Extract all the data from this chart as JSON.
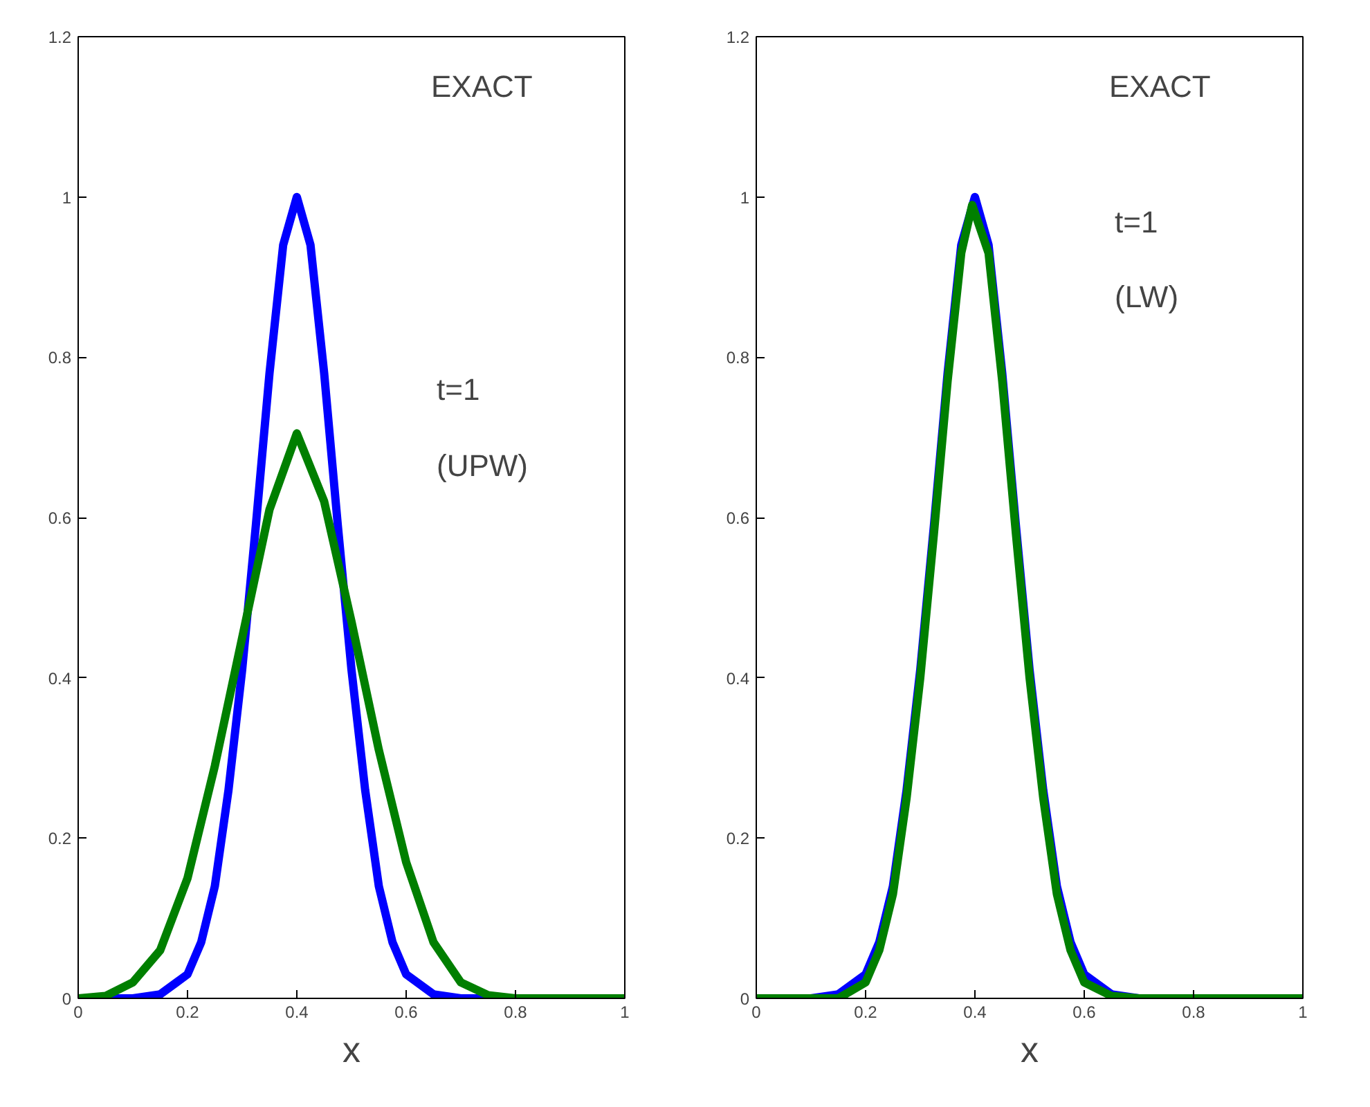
{
  "chart_data": [
    {
      "type": "line",
      "xlabel": "x",
      "xlim": [
        0,
        1
      ],
      "ylim": [
        0,
        1.2
      ],
      "xticks": [
        0,
        0.2,
        0.4,
        0.6,
        0.8,
        1
      ],
      "yticks": [
        0,
        0.2,
        0.4,
        0.6,
        0.8,
        1,
        1.2
      ],
      "grid": false,
      "annotations": [
        "EXACT",
        "t=1",
        "(UPW)"
      ],
      "series": [
        {
          "color": "#0000ff",
          "x": [
            0,
            0.1,
            0.15,
            0.2,
            0.225,
            0.25,
            0.275,
            0.3,
            0.325,
            0.35,
            0.375,
            0.4,
            0.425,
            0.45,
            0.475,
            0.5,
            0.525,
            0.55,
            0.575,
            0.6,
            0.65,
            0.7,
            1
          ],
          "values": [
            0,
            0,
            0.005,
            0.03,
            0.07,
            0.14,
            0.26,
            0.41,
            0.59,
            0.78,
            0.94,
            1.0,
            0.94,
            0.78,
            0.59,
            0.41,
            0.26,
            0.14,
            0.07,
            0.03,
            0.005,
            0,
            0
          ]
        },
        {
          "color": "#007f00",
          "x": [
            0,
            0.05,
            0.1,
            0.15,
            0.2,
            0.25,
            0.3,
            0.35,
            0.4,
            0.45,
            0.5,
            0.55,
            0.6,
            0.65,
            0.7,
            0.75,
            0.8,
            1
          ],
          "values": [
            0,
            0.003,
            0.02,
            0.06,
            0.15,
            0.29,
            0.45,
            0.61,
            0.705,
            0.62,
            0.47,
            0.31,
            0.17,
            0.07,
            0.02,
            0.004,
            0,
            0
          ]
        }
      ]
    },
    {
      "type": "line",
      "xlabel": "x",
      "xlim": [
        0,
        1
      ],
      "ylim": [
        0,
        1.2
      ],
      "xticks": [
        0,
        0.2,
        0.4,
        0.6,
        0.8,
        1
      ],
      "yticks": [
        0,
        0.2,
        0.4,
        0.6,
        0.8,
        1,
        1.2
      ],
      "grid": false,
      "annotations": [
        "EXACT",
        "t=1",
        "(LW)"
      ],
      "series": [
        {
          "color": "#0000ff",
          "x": [
            0,
            0.1,
            0.15,
            0.2,
            0.225,
            0.25,
            0.275,
            0.3,
            0.325,
            0.35,
            0.375,
            0.4,
            0.425,
            0.45,
            0.475,
            0.5,
            0.525,
            0.55,
            0.575,
            0.6,
            0.65,
            0.7,
            1
          ],
          "values": [
            0,
            0,
            0.005,
            0.03,
            0.07,
            0.14,
            0.26,
            0.41,
            0.59,
            0.78,
            0.94,
            1.0,
            0.94,
            0.78,
            0.59,
            0.41,
            0.26,
            0.14,
            0.07,
            0.03,
            0.005,
            0,
            0
          ]
        },
        {
          "color": "#007f00",
          "x": [
            0,
            0.15,
            0.2,
            0.225,
            0.25,
            0.275,
            0.3,
            0.325,
            0.35,
            0.375,
            0.395,
            0.425,
            0.45,
            0.475,
            0.5,
            0.525,
            0.55,
            0.575,
            0.6,
            0.65,
            0.7,
            1
          ],
          "values": [
            0,
            0,
            0.02,
            0.06,
            0.13,
            0.25,
            0.4,
            0.58,
            0.77,
            0.93,
            0.99,
            0.93,
            0.77,
            0.58,
            0.4,
            0.25,
            0.13,
            0.06,
            0.02,
            0.003,
            0,
            0
          ]
        }
      ]
    }
  ]
}
